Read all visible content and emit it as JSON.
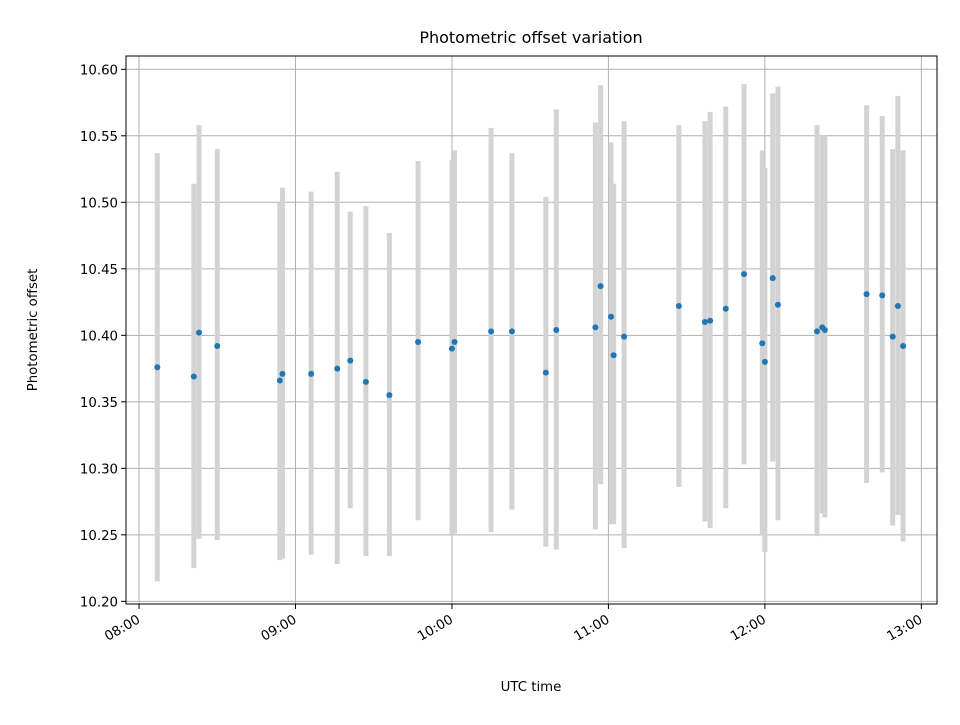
{
  "chart_data": {
    "type": "scatter",
    "title": "Photometric offset variation",
    "xlabel": "UTC time",
    "ylabel": "Photometric offset",
    "x_ticks": [
      "08:00",
      "09:00",
      "10:00",
      "11:00",
      "12:00",
      "13:00"
    ],
    "x_tick_minutes": [
      480,
      540,
      600,
      660,
      720,
      780
    ],
    "y_ticks": [
      "10.20",
      "10.25",
      "10.30",
      "10.35",
      "10.40",
      "10.45",
      "10.50",
      "10.55",
      "10.60"
    ],
    "xlim": [
      "07:55",
      "13:06"
    ],
    "ylim": [
      10.198,
      10.61
    ],
    "grid": true,
    "colors": {
      "point": "#1f77b4",
      "errorbar": "#d3d3d3",
      "grid": "#b0b0b0"
    },
    "points": [
      {
        "x": "08:07",
        "y": 10.376,
        "ymin": 10.215,
        "ymax": 10.537
      },
      {
        "x": "08:21",
        "y": 10.369,
        "ymin": 10.225,
        "ymax": 10.514
      },
      {
        "x": "08:23",
        "y": 10.402,
        "ymin": 10.247,
        "ymax": 10.558
      },
      {
        "x": "08:30",
        "y": 10.392,
        "ymin": 10.246,
        "ymax": 10.54
      },
      {
        "x": "08:54",
        "y": 10.366,
        "ymin": 10.231,
        "ymax": 10.5
      },
      {
        "x": "08:55",
        "y": 10.371,
        "ymin": 10.232,
        "ymax": 10.511
      },
      {
        "x": "09:06",
        "y": 10.371,
        "ymin": 10.235,
        "ymax": 10.508
      },
      {
        "x": "09:16",
        "y": 10.375,
        "ymin": 10.228,
        "ymax": 10.523
      },
      {
        "x": "09:21",
        "y": 10.381,
        "ymin": 10.27,
        "ymax": 10.493
      },
      {
        "x": "09:27",
        "y": 10.365,
        "ymin": 10.234,
        "ymax": 10.497
      },
      {
        "x": "09:36",
        "y": 10.355,
        "ymin": 10.234,
        "ymax": 10.477
      },
      {
        "x": "09:47",
        "y": 10.395,
        "ymin": 10.261,
        "ymax": 10.531
      },
      {
        "x": "10:00",
        "y": 10.39,
        "ymin": 10.25,
        "ymax": 10.532
      },
      {
        "x": "10:01",
        "y": 10.395,
        "ymin": 10.251,
        "ymax": 10.539
      },
      {
        "x": "10:15",
        "y": 10.403,
        "ymin": 10.252,
        "ymax": 10.556
      },
      {
        "x": "10:23",
        "y": 10.403,
        "ymin": 10.269,
        "ymax": 10.537
      },
      {
        "x": "10:36",
        "y": 10.372,
        "ymin": 10.241,
        "ymax": 10.504
      },
      {
        "x": "10:40",
        "y": 10.404,
        "ymin": 10.239,
        "ymax": 10.57
      },
      {
        "x": "10:55",
        "y": 10.406,
        "ymin": 10.254,
        "ymax": 10.56
      },
      {
        "x": "10:57",
        "y": 10.437,
        "ymin": 10.288,
        "ymax": 10.588
      },
      {
        "x": "11:01",
        "y": 10.414,
        "ymin": 10.258,
        "ymax": 10.545
      },
      {
        "x": "11:02",
        "y": 10.385,
        "ymin": 10.258,
        "ymax": 10.514
      },
      {
        "x": "11:06",
        "y": 10.399,
        "ymin": 10.24,
        "ymax": 10.561
      },
      {
        "x": "11:27",
        "y": 10.422,
        "ymin": 10.286,
        "ymax": 10.558
      },
      {
        "x": "11:37",
        "y": 10.41,
        "ymin": 10.26,
        "ymax": 10.561
      },
      {
        "x": "11:39",
        "y": 10.411,
        "ymin": 10.255,
        "ymax": 10.568
      },
      {
        "x": "11:45",
        "y": 10.42,
        "ymin": 10.27,
        "ymax": 10.572
      },
      {
        "x": "11:52",
        "y": 10.446,
        "ymin": 10.303,
        "ymax": 10.589
      },
      {
        "x": "11:59",
        "y": 10.394,
        "ymin": 10.25,
        "ymax": 10.539
      },
      {
        "x": "12:00",
        "y": 10.38,
        "ymin": 10.237,
        "ymax": 10.526
      },
      {
        "x": "12:03",
        "y": 10.443,
        "ymin": 10.305,
        "ymax": 10.582
      },
      {
        "x": "12:05",
        "y": 10.423,
        "ymin": 10.261,
        "ymax": 10.587
      },
      {
        "x": "12:20",
        "y": 10.403,
        "ymin": 10.249,
        "ymax": 10.558
      },
      {
        "x": "12:22",
        "y": 10.406,
        "ymin": 10.266,
        "ymax": 10.55
      },
      {
        "x": "12:23",
        "y": 10.404,
        "ymin": 10.263,
        "ymax": 10.55
      },
      {
        "x": "12:39",
        "y": 10.431,
        "ymin": 10.289,
        "ymax": 10.573
      },
      {
        "x": "12:45",
        "y": 10.43,
        "ymin": 10.297,
        "ymax": 10.565
      },
      {
        "x": "12:49",
        "y": 10.399,
        "ymin": 10.257,
        "ymax": 10.54
      },
      {
        "x": "12:51",
        "y": 10.422,
        "ymin": 10.265,
        "ymax": 10.58
      },
      {
        "x": "12:53",
        "y": 10.392,
        "ymin": 10.245,
        "ymax": 10.539
      }
    ]
  }
}
